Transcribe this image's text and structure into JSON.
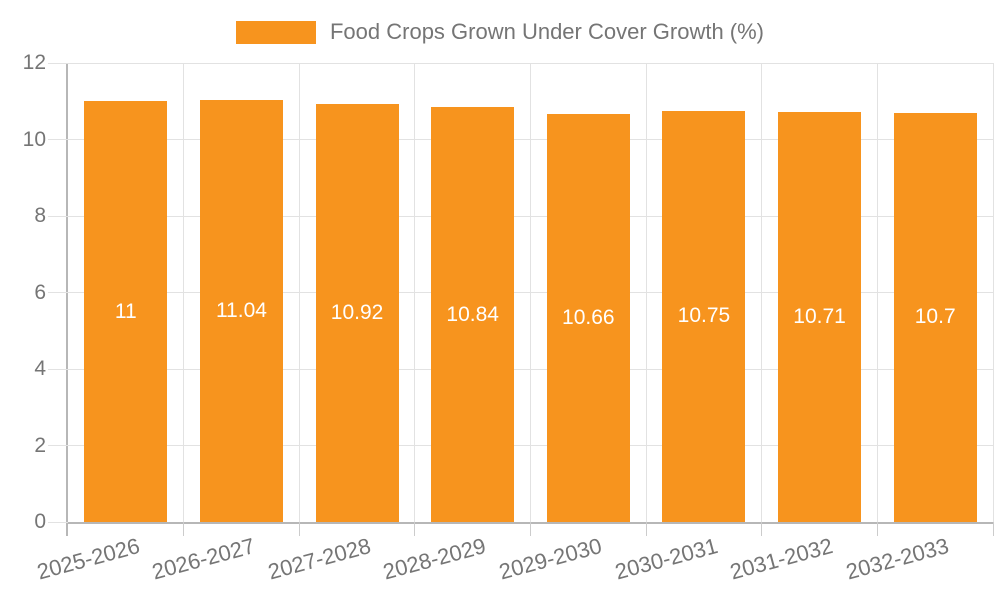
{
  "legend": {
    "label": "Food Crops Grown Under Cover Growth (%)"
  },
  "chart_data": {
    "type": "bar",
    "title": "Food Crops Grown Under Cover Growth (%)",
    "categories": [
      "2025-2026",
      "2026-2027",
      "2027-2028",
      "2028-2029",
      "2029-2030",
      "2030-2031",
      "2031-2032",
      "2032-2033"
    ],
    "values": [
      11,
      11.04,
      10.92,
      10.84,
      10.66,
      10.75,
      10.71,
      10.7
    ],
    "bar_labels": [
      "11",
      "11.04",
      "10.92",
      "10.84",
      "10.66",
      "10.75",
      "10.71",
      "10.7"
    ],
    "xlabel": "",
    "ylabel": "",
    "ylim": [
      0,
      12
    ],
    "yticks": [
      0,
      2,
      4,
      6,
      8,
      10,
      12
    ],
    "grid": true,
    "legend_position": "top",
    "colors": {
      "bar": "#F7941E",
      "axis_line": "#B7B7B7",
      "gridline": "#E2E2E2",
      "tick": "#CCCCCC",
      "tick_text": "#757575",
      "bar_label": "#FFFFFF"
    }
  }
}
